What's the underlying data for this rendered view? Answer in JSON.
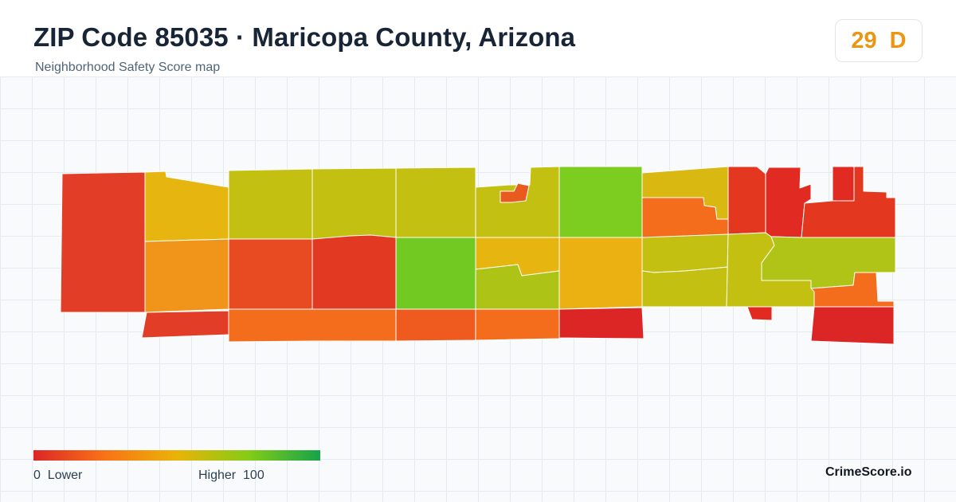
{
  "header": {
    "title": "ZIP Code 85035 · Maricopa County, Arizona",
    "subtitle": "Neighborhood Safety Score map"
  },
  "score": {
    "value": "29",
    "grade": "D",
    "color": "#ea9613"
  },
  "legend": {
    "low_label": "0  Lower",
    "high_label": "Higher  100",
    "gradient_colors": [
      "#dc2626",
      "#f97316",
      "#eab308",
      "#84cc16",
      "#16a34a"
    ]
  },
  "brand": "CrimeScore.io",
  "map": {
    "regions": [
      {
        "name": "west-tract",
        "color": "#e23d27"
      },
      {
        "name": "north-tract-1",
        "color": "#e6b50f"
      },
      {
        "name": "north-tract-2",
        "color": "#c3c012"
      },
      {
        "name": "north-tract-3",
        "color": "#c3c012"
      },
      {
        "name": "north-tract-4",
        "color": "#c3c012"
      },
      {
        "name": "north-tract-5",
        "color": "#c3c012"
      },
      {
        "name": "north-tract-6",
        "color": "#7ccd1f"
      },
      {
        "name": "north-tract-7",
        "color": "#d8b811"
      },
      {
        "name": "northeast-tract-1",
        "color": "#e3371f"
      },
      {
        "name": "northeast-tract-2",
        "color": "#e02a22"
      },
      {
        "name": "northeast-tract-3",
        "color": "#e02a22"
      },
      {
        "name": "northeast-tract-4",
        "color": "#e3371f"
      },
      {
        "name": "central-tract-1",
        "color": "#f0951a"
      },
      {
        "name": "central-tract-2",
        "color": "#e84b22"
      },
      {
        "name": "central-tract-3",
        "color": "#e23a22"
      },
      {
        "name": "central-tract-4",
        "color": "#72c922"
      },
      {
        "name": "central-tract-5",
        "color": "#e6b50f"
      },
      {
        "name": "central-tract-6",
        "color": "#adc417"
      },
      {
        "name": "central-tract-7",
        "color": "#ebb011"
      },
      {
        "name": "central-tract-8",
        "color": "#f36d1d"
      },
      {
        "name": "central-tract-9",
        "color": "#c3c012"
      },
      {
        "name": "central-tract-10",
        "color": "#c3c012"
      },
      {
        "name": "east-tract-1",
        "color": "#c3c012"
      },
      {
        "name": "east-tract-2",
        "color": "#afc417"
      },
      {
        "name": "south-tract-1",
        "color": "#e23d27"
      },
      {
        "name": "south-tract-2",
        "color": "#f36d1d"
      },
      {
        "name": "south-tract-3",
        "color": "#ef5a1e"
      },
      {
        "name": "south-tract-4",
        "color": "#f36d1d"
      },
      {
        "name": "south-tract-5",
        "color": "#dc2626"
      },
      {
        "name": "south-tract-6",
        "color": "#e02a22"
      },
      {
        "name": "southeast-tract-1",
        "color": "#f36d1d"
      },
      {
        "name": "southeast-tract-2",
        "color": "#dc2626"
      },
      {
        "name": "small-tract",
        "color": "#e85a1e"
      }
    ]
  }
}
